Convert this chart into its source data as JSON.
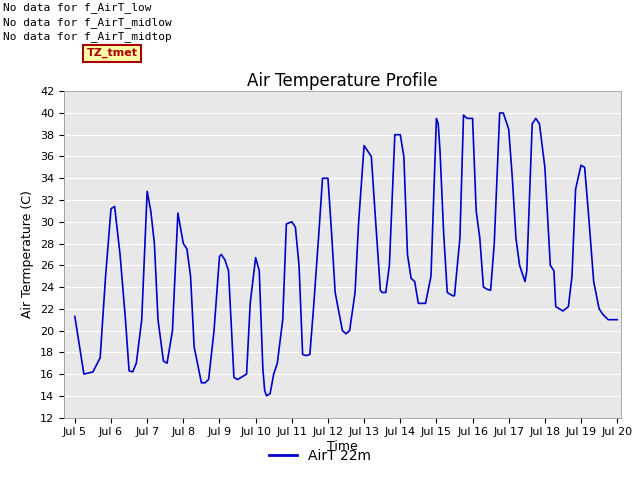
{
  "title": "Air Temperature Profile",
  "xlabel": "Time",
  "ylabel": "Air Termperature (C)",
  "xlim_start": 5,
  "xlim_end": 20,
  "ylim": [
    12,
    42
  ],
  "yticks": [
    12,
    14,
    16,
    18,
    20,
    22,
    24,
    26,
    28,
    30,
    32,
    34,
    36,
    38,
    40,
    42
  ],
  "xtick_labels": [
    "Jul 5",
    "Jul 6",
    "Jul 7",
    "Jul 8",
    "Jul 9",
    "Jul 10",
    "Jul 11",
    "Jul 12",
    "Jul 13",
    "Jul 14",
    "Jul 15",
    "Jul 16",
    "Jul 17",
    "Jul 18",
    "Jul 19",
    "Jul 20"
  ],
  "line_color": "#0000cc",
  "line_label": "AirT 22m",
  "annotations": [
    "No data for f_AirT_low",
    "No data for f_AirT_midlow",
    "No data for f_AirT_midtop"
  ],
  "tz_label": "TZ_tmet",
  "tz_facecolor": "#ffffaa",
  "tz_edgecolor": "#aa0000",
  "tz_textcolor": "#aa0000",
  "background_color": "#e8e8e8",
  "title_fontsize": 12,
  "axis_label_fontsize": 9,
  "tick_fontsize": 8,
  "annot_fontsize": 8,
  "legend_fontsize": 10,
  "data_points": [
    [
      5.0,
      21.3
    ],
    [
      5.25,
      16.0
    ],
    [
      5.5,
      16.2
    ],
    [
      5.7,
      17.5
    ],
    [
      5.85,
      25.0
    ],
    [
      6.0,
      31.2
    ],
    [
      6.1,
      31.4
    ],
    [
      6.25,
      27.0
    ],
    [
      6.4,
      21.0
    ],
    [
      6.5,
      16.3
    ],
    [
      6.6,
      16.2
    ],
    [
      6.7,
      17.0
    ],
    [
      6.85,
      21.0
    ],
    [
      7.0,
      32.8
    ],
    [
      7.1,
      31.0
    ],
    [
      7.2,
      28.0
    ],
    [
      7.3,
      21.0
    ],
    [
      7.45,
      17.2
    ],
    [
      7.55,
      17.0
    ],
    [
      7.7,
      20.0
    ],
    [
      7.85,
      30.8
    ],
    [
      8.0,
      28.0
    ],
    [
      8.1,
      27.5
    ],
    [
      8.2,
      25.0
    ],
    [
      8.3,
      18.5
    ],
    [
      8.5,
      15.2
    ],
    [
      8.6,
      15.2
    ],
    [
      8.7,
      15.5
    ],
    [
      8.85,
      20.0
    ],
    [
      9.0,
      26.8
    ],
    [
      9.05,
      27.0
    ],
    [
      9.15,
      26.5
    ],
    [
      9.25,
      25.5
    ],
    [
      9.4,
      15.7
    ],
    [
      9.5,
      15.5
    ],
    [
      9.6,
      15.7
    ],
    [
      9.75,
      16.0
    ],
    [
      9.85,
      22.5
    ],
    [
      10.0,
      26.7
    ],
    [
      10.1,
      25.5
    ],
    [
      10.2,
      16.5
    ],
    [
      10.25,
      14.5
    ],
    [
      10.3,
      14.0
    ],
    [
      10.4,
      14.2
    ],
    [
      10.5,
      16.0
    ],
    [
      10.6,
      17.0
    ],
    [
      10.75,
      21.0
    ],
    [
      10.85,
      29.8
    ],
    [
      11.0,
      30.0
    ],
    [
      11.1,
      29.5
    ],
    [
      11.2,
      26.0
    ],
    [
      11.3,
      17.8
    ],
    [
      11.4,
      17.7
    ],
    [
      11.5,
      17.8
    ],
    [
      11.6,
      22.0
    ],
    [
      11.75,
      29.0
    ],
    [
      11.85,
      34.0
    ],
    [
      12.0,
      34.0
    ],
    [
      12.1,
      29.0
    ],
    [
      12.2,
      23.5
    ],
    [
      12.4,
      20.0
    ],
    [
      12.5,
      19.7
    ],
    [
      12.6,
      20.0
    ],
    [
      12.75,
      23.5
    ],
    [
      12.85,
      30.0
    ],
    [
      13.0,
      37.0
    ],
    [
      13.1,
      36.5
    ],
    [
      13.2,
      36.0
    ],
    [
      13.3,
      31.0
    ],
    [
      13.45,
      23.7
    ],
    [
      13.5,
      23.5
    ],
    [
      13.6,
      23.5
    ],
    [
      13.7,
      26.0
    ],
    [
      13.85,
      38.0
    ],
    [
      14.0,
      38.0
    ],
    [
      14.1,
      36.0
    ],
    [
      14.2,
      27.0
    ],
    [
      14.3,
      24.8
    ],
    [
      14.4,
      24.5
    ],
    [
      14.5,
      22.5
    ],
    [
      14.6,
      22.5
    ],
    [
      14.7,
      22.5
    ],
    [
      14.85,
      25.0
    ],
    [
      15.0,
      39.5
    ],
    [
      15.05,
      39.0
    ],
    [
      15.1,
      36.5
    ],
    [
      15.2,
      29.0
    ],
    [
      15.3,
      23.5
    ],
    [
      15.45,
      23.2
    ],
    [
      15.5,
      23.2
    ],
    [
      15.65,
      28.5
    ],
    [
      15.75,
      39.8
    ],
    [
      15.85,
      39.5
    ],
    [
      16.0,
      39.5
    ],
    [
      16.1,
      31.0
    ],
    [
      16.2,
      28.5
    ],
    [
      16.3,
      24.0
    ],
    [
      16.4,
      23.8
    ],
    [
      16.5,
      23.7
    ],
    [
      16.6,
      28.0
    ],
    [
      16.75,
      40.0
    ],
    [
      16.85,
      40.0
    ],
    [
      17.0,
      38.5
    ],
    [
      17.1,
      34.0
    ],
    [
      17.2,
      28.5
    ],
    [
      17.3,
      26.0
    ],
    [
      17.4,
      25.0
    ],
    [
      17.45,
      24.5
    ],
    [
      17.5,
      25.5
    ],
    [
      17.65,
      39.0
    ],
    [
      17.75,
      39.5
    ],
    [
      17.85,
      39.0
    ],
    [
      18.0,
      35.0
    ],
    [
      18.15,
      26.0
    ],
    [
      18.25,
      25.5
    ],
    [
      18.3,
      22.2
    ],
    [
      18.4,
      22.0
    ],
    [
      18.5,
      21.8
    ],
    [
      18.65,
      22.2
    ],
    [
      18.75,
      25.0
    ],
    [
      18.85,
      33.0
    ],
    [
      19.0,
      35.2
    ],
    [
      19.1,
      35.0
    ],
    [
      19.2,
      31.0
    ],
    [
      19.35,
      24.5
    ],
    [
      19.5,
      22.0
    ],
    [
      19.6,
      21.5
    ],
    [
      19.75,
      21.0
    ],
    [
      19.9,
      21.0
    ],
    [
      20.0,
      21.0
    ]
  ]
}
